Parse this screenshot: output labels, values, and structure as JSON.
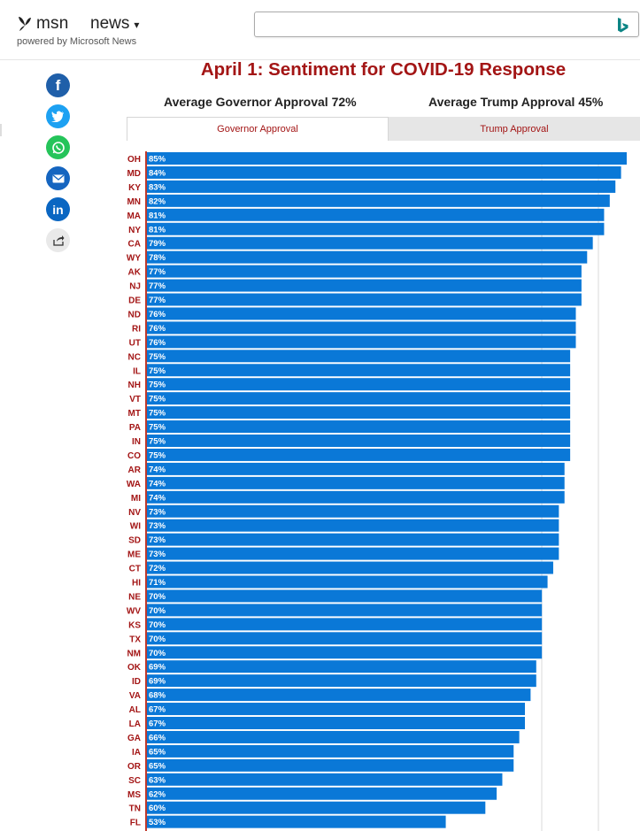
{
  "header": {
    "logo_text": "msn",
    "section": "news",
    "powered_by": "powered by Microsoft News",
    "search_placeholder": ""
  },
  "share": [
    "facebook-icon",
    "twitter-icon",
    "whatsapp-icon",
    "email-icon",
    "linkedin-icon",
    "share-icon"
  ],
  "page": {
    "title": "April 1: Sentiment for COVID-19 Response",
    "avg_governor": "Average Governor Approval 72%",
    "avg_trump": "Average Trump Approval  45%",
    "tabs": [
      "Governor Approval",
      "Trump Approval"
    ],
    "active_tab": "Governor Approval"
  },
  "colors": {
    "bar": "#0a78d7",
    "state_label": "#a31515",
    "title": "#a31515",
    "gridline": "#d9d9d9"
  },
  "chart_data": {
    "type": "bar",
    "orientation": "horizontal",
    "title": "",
    "categories": [
      "OH",
      "MD",
      "KY",
      "MN",
      "MA",
      "NY",
      "CA",
      "WY",
      "AK",
      "NJ",
      "DE",
      "ND",
      "RI",
      "UT",
      "NC",
      "IL",
      "NH",
      "VT",
      "MT",
      "PA",
      "IN",
      "CO",
      "AR",
      "WA",
      "MI",
      "NV",
      "WI",
      "SD",
      "ME",
      "CT",
      "HI",
      "NE",
      "WV",
      "KS",
      "TX",
      "NM",
      "OK",
      "ID",
      "VA",
      "AL",
      "LA",
      "GA",
      "IA",
      "OR",
      "SC",
      "MS",
      "TN",
      "FL"
    ],
    "values": [
      85,
      84,
      83,
      82,
      81,
      81,
      79,
      78,
      77,
      77,
      77,
      76,
      76,
      76,
      75,
      75,
      75,
      75,
      75,
      75,
      75,
      75,
      74,
      74,
      74,
      73,
      73,
      73,
      73,
      72,
      71,
      70,
      70,
      70,
      70,
      70,
      69,
      69,
      68,
      67,
      67,
      66,
      65,
      65,
      63,
      62,
      60,
      53
    ],
    "value_labels": [
      "85%",
      "84%",
      "83%",
      "82%",
      "81%",
      "81%",
      "79%",
      "78%",
      "77%",
      "77%",
      "77%",
      "76%",
      "76%",
      "76%",
      "75%",
      "75%",
      "75%",
      "75%",
      "75%",
      "75%",
      "75%",
      "75%",
      "74%",
      "74%",
      "74%",
      "73%",
      "73%",
      "73%",
      "73%",
      "72%",
      "71%",
      "70%",
      "70%",
      "70%",
      "70%",
      "70%",
      "69%",
      "69%",
      "68%",
      "67%",
      "67%",
      "66%",
      "65%",
      "65%",
      "63%",
      "62%",
      "60%",
      "53%"
    ],
    "xlim": [
      0,
      85
    ],
    "grid": true
  }
}
